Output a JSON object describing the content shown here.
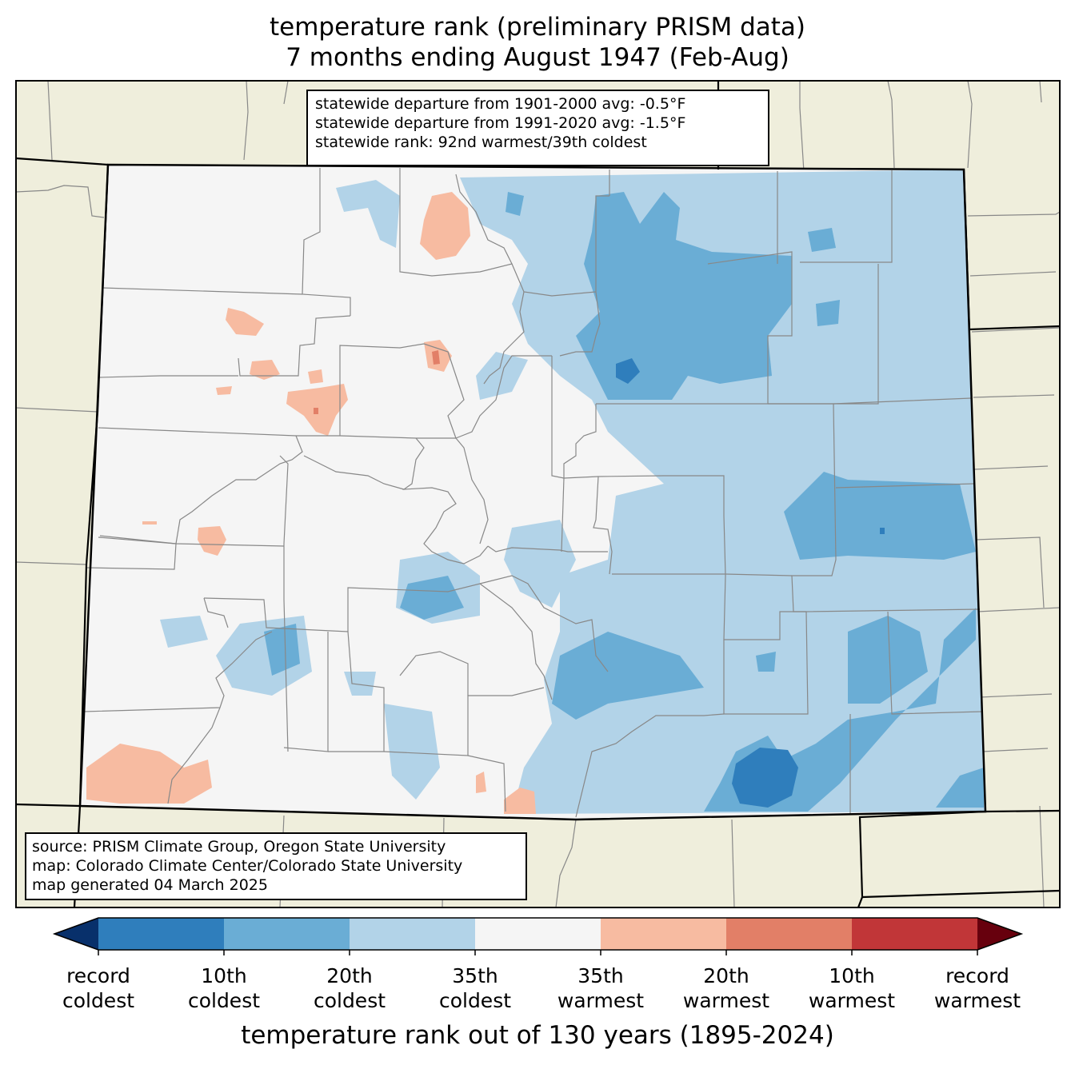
{
  "title": {
    "line1": "temperature rank (preliminary PRISM data)",
    "line2": "7 months ending August 1947 (Feb-Aug)"
  },
  "stats": {
    "line1": "statewide departure from 1901-2000 avg: -0.5°F",
    "line2": "statewide departure from 1991-2020 avg: -1.5°F",
    "line3": "statewide rank: 92nd warmest/39th coldest"
  },
  "source": {
    "line1": "source: PRISM Climate Group, Oregon State University",
    "line2": "map: Colorado Climate Center/Colorado State University",
    "line3": "map generated 04 March 2025"
  },
  "colorbar": {
    "title": "temperature rank out of 130 years (1895-2024)",
    "ticks": [
      {
        "l1": "record",
        "l2": "coldest"
      },
      {
        "l1": "10th",
        "l2": "coldest"
      },
      {
        "l1": "20th",
        "l2": "coldest"
      },
      {
        "l1": "35th",
        "l2": "coldest"
      },
      {
        "l1": "35th",
        "l2": "warmest"
      },
      {
        "l1": "20th",
        "l2": "warmest"
      },
      {
        "l1": "10th",
        "l2": "warmest"
      },
      {
        "l1": "record",
        "l2": "warmest"
      }
    ],
    "colors": [
      "#08306b",
      "#2f7ebc",
      "#6aadd5",
      "#b2d3e8",
      "#f5f5f5",
      "#f7bba1",
      "#e27f67",
      "#c13638",
      "#67000d"
    ]
  },
  "map_colors": {
    "land_outside": "#efeedc",
    "neutral": "#f5f5f5",
    "cold_35": "#b2d3e8",
    "cold_20": "#6aadd5",
    "cold_10": "#2f7ebc",
    "warm_35": "#f7bba1",
    "warm_20": "#e27f67"
  }
}
